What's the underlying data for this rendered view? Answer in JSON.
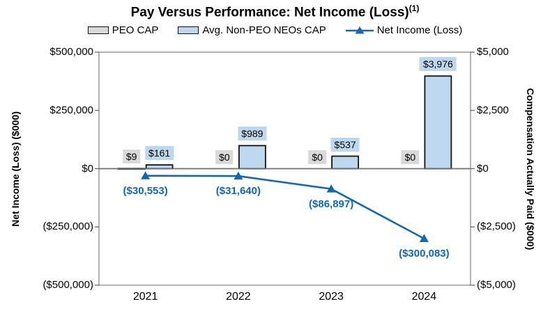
{
  "title": {
    "text": "Pay Versus Performance: Net Income (Loss)",
    "footnote_marker": "(1)"
  },
  "legend": [
    {
      "label": "PEO CAP",
      "type": "bar",
      "color": "#D9D9D9"
    },
    {
      "label": "Avg. Non-PEO NEOs CAP",
      "type": "bar",
      "color": "#BDD7EE"
    },
    {
      "label": "Net Income (Loss)",
      "type": "line",
      "color": "#1268B2"
    }
  ],
  "axes": {
    "left": {
      "title": "Net Income (Loss) ($000)",
      "ticks": [
        {
          "label": "$500,000",
          "value": 500000
        },
        {
          "label": "$250,000",
          "value": 250000
        },
        {
          "label": "$0",
          "value": 0
        },
        {
          "label": "($250,000)",
          "value": -250000
        },
        {
          "label": "($500,000)",
          "value": -500000
        }
      ]
    },
    "right": {
      "title": "Compensation Actually Paid ($000)",
      "ticks": [
        {
          "label": "$5,000",
          "value": 5000
        },
        {
          "label": "$2,500",
          "value": 2500
        },
        {
          "label": "$0",
          "value": 0
        },
        {
          "label": "($2,500)",
          "value": -2500
        },
        {
          "label": "($5,000)",
          "value": -5000
        }
      ]
    }
  },
  "chart_data": {
    "type": "combo-bar-line",
    "categories": [
      "2021",
      "2022",
      "2023",
      "2024"
    ],
    "left_axis_range": [
      -500000,
      500000
    ],
    "right_axis_range": [
      -5000,
      5000
    ],
    "grid": "off",
    "legend_position": "top",
    "series": [
      {
        "name": "PEO CAP",
        "type": "bar",
        "axis": "right",
        "color": "#D9D9D9",
        "values": [
          9,
          0,
          0,
          0
        ],
        "labels": [
          "$9",
          "$0",
          "$0",
          "$0"
        ]
      },
      {
        "name": "Avg. Non-PEO NEOs CAP",
        "type": "bar",
        "axis": "right",
        "color": "#BDD7EE",
        "values": [
          161,
          989,
          537,
          3976
        ],
        "labels": [
          "$161",
          "$989",
          "$537",
          "$3,976"
        ]
      },
      {
        "name": "Net Income (Loss)",
        "type": "line",
        "axis": "left",
        "color": "#1268B2",
        "values": [
          -30553,
          -31640,
          -86897,
          -300083
        ],
        "labels": [
          "($30,553)",
          "($31,640)",
          "($86,897)",
          "($300,083)"
        ]
      }
    ]
  },
  "colors": {
    "plot_border": "#808080",
    "tick": "#595959",
    "zero_line": "#6E6E6E",
    "bar_border": "#111111",
    "line": "#1268B2",
    "text": "#000000"
  }
}
